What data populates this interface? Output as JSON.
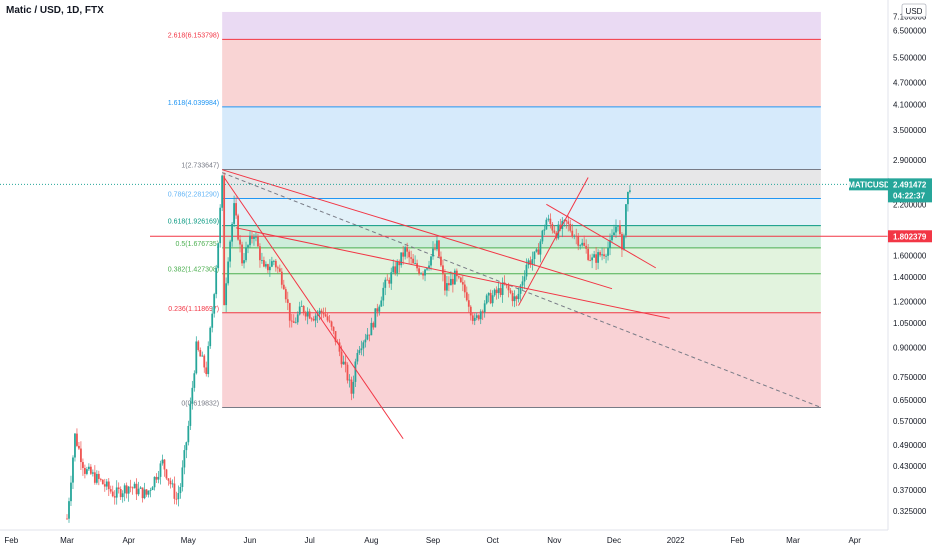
{
  "header": {
    "symbol": "Matic / USD, 1D, FTX",
    "usd_badge": "USD",
    "axis_top_partial": "7.100000"
  },
  "colors": {
    "up": "#26a69a",
    "down": "#ef5350",
    "trend": "#f23645",
    "dashed": "#787b86",
    "tag_green": "#26a69a",
    "tag_red": "#f23645"
  },
  "price_tags": {
    "current": {
      "ticker": "MATICUSD",
      "price": "2.491472",
      "countdown": "04:22:37"
    },
    "hline": {
      "price": "1.802379"
    }
  },
  "chart_data": {
    "type": "candlestick",
    "title": "Matic / USD, 1D, FTX",
    "y_scale": "log",
    "ylim": [
      0.29,
      7.3
    ],
    "x_start": "2021-02-10",
    "x_end": "2022-04-30",
    "x_ticks": [
      "Feb",
      "Mar",
      "Apr",
      "May",
      "Jun",
      "Jul",
      "Aug",
      "Sep",
      "Oct",
      "Nov",
      "Dec",
      "2022",
      "Feb",
      "Mar",
      "Apr"
    ],
    "y_ticks": [
      "7.100000",
      "6.500000",
      "5.500000",
      "4.700000",
      "4.100000",
      "3.500000",
      "2.900000",
      "2.500000",
      "2.200000",
      "1.800000",
      "1.600000",
      "1.400000",
      "1.200000",
      "1.050000",
      "0.900000",
      "0.750000",
      "0.650000",
      "0.570000",
      "0.490000",
      "0.430000",
      "0.370000",
      "0.325000"
    ],
    "fib_levels": [
      {
        "ratio": "0",
        "label": "0(0.619832)",
        "price": 0.619832,
        "fill": "#f8cdd0",
        "line": "#787b86",
        "text_color": "#787b86"
      },
      {
        "ratio": "0.236",
        "label": "0.236(1.118697)",
        "price": 1.118697,
        "fill": "#dff2da",
        "line": "#f23645",
        "text_color": "#f23645"
      },
      {
        "ratio": "0.382",
        "label": "0.382(1.427308)",
        "price": 1.427308,
        "fill": "#dff2da",
        "line": "#4caf50",
        "text_color": "#4caf50"
      },
      {
        "ratio": "0.5",
        "label": "0.5(1.676735)",
        "price": 1.676735,
        "fill": "#c8ebd6",
        "line": "#4caf50",
        "text_color": "#4caf50"
      },
      {
        "ratio": "0.618",
        "label": "0.618(1.926169)",
        "price": 1.926169,
        "fill": "#dff0f8",
        "line": "#089981",
        "text_color": "#089981"
      },
      {
        "ratio": "0.786",
        "label": "0.786(2.281290)",
        "price": 2.28129,
        "fill": "#e4e4e6",
        "line": "#2196f3",
        "text_color": "#64b5f6"
      },
      {
        "ratio": "1",
        "label": "1(2.733647)",
        "price": 2.733647,
        "fill": "#d2e8fb",
        "line": "#787b86",
        "text_color": "#787b86"
      },
      {
        "ratio": "1.618",
        "label": "1.618(4.039984)",
        "price": 4.039984,
        "fill": "#f8cfcf",
        "line": "#2196f3",
        "text_color": "#2196f3"
      },
      {
        "ratio": "2.618",
        "label": "2.618(6.153798)",
        "price": 6.153798,
        "fill": "#e8d6f2",
        "line": "#f23645",
        "text_color": "#f23645"
      }
    ],
    "fib_range": {
      "x0": "2021-05-18",
      "x1": "2022-03-15",
      "top_price": 7.3
    },
    "hline": 1.802379,
    "current_price": 2.491472,
    "trendlines": [
      {
        "name": "trend-1",
        "style": "solid",
        "p1": [
          "2021-05-18",
          2.73
        ],
        "p2": [
          "2021-11-30",
          1.3
        ]
      },
      {
        "name": "trend-2",
        "style": "solid",
        "p1": [
          "2021-05-19",
          2.6
        ],
        "p2": [
          "2021-08-17",
          0.51
        ]
      },
      {
        "name": "trend-3",
        "style": "dashed",
        "p1": [
          "2021-05-18",
          2.68
        ],
        "p2": [
          "2022-03-15",
          0.62
        ]
      },
      {
        "name": "trend-4",
        "style": "solid",
        "p1": [
          "2021-10-14",
          1.17
        ],
        "p2": [
          "2021-11-18",
          2.6
        ]
      },
      {
        "name": "trend-5",
        "style": "solid",
        "p1": [
          "2021-10-28",
          2.2
        ],
        "p2": [
          "2021-12-22",
          1.48
        ]
      },
      {
        "name": "trend-6",
        "style": "solid",
        "p1": [
          "2021-05-25",
          1.9
        ],
        "p2": [
          "2021-12-29",
          1.08
        ]
      }
    ],
    "series_keypoints": [
      [
        "2021-03-01",
        0.31
      ],
      [
        "2021-03-05",
        0.52
      ],
      [
        "2021-03-10",
        0.42
      ],
      [
        "2021-03-18",
        0.39
      ],
      [
        "2021-03-25",
        0.36
      ],
      [
        "2021-04-01",
        0.38
      ],
      [
        "2021-04-10",
        0.36
      ],
      [
        "2021-04-18",
        0.44
      ],
      [
        "2021-04-25",
        0.35
      ],
      [
        "2021-04-27",
        0.38
      ],
      [
        "2021-05-01",
        0.55
      ],
      [
        "2021-05-05",
        0.9
      ],
      [
        "2021-05-10",
        0.78
      ],
      [
        "2021-05-13",
        1.12
      ],
      [
        "2021-05-16",
        1.75
      ],
      [
        "2021-05-18",
        2.55
      ],
      [
        "2021-05-19",
        1.2
      ],
      [
        "2021-05-21",
        1.6
      ],
      [
        "2021-05-24",
        2.15
      ],
      [
        "2021-05-28",
        1.55
      ],
      [
        "2021-06-03",
        1.85
      ],
      [
        "2021-06-08",
        1.45
      ],
      [
        "2021-06-13",
        1.55
      ],
      [
        "2021-06-18",
        1.35
      ],
      [
        "2021-06-22",
        1.02
      ],
      [
        "2021-06-27",
        1.15
      ],
      [
        "2021-07-03",
        1.1
      ],
      [
        "2021-07-08",
        1.13
      ],
      [
        "2021-07-14",
        0.95
      ],
      [
        "2021-07-20",
        0.75
      ],
      [
        "2021-07-22",
        0.68
      ],
      [
        "2021-07-25",
        0.9
      ],
      [
        "2021-08-01",
        1.02
      ],
      [
        "2021-08-07",
        1.3
      ],
      [
        "2021-08-14",
        1.5
      ],
      [
        "2021-08-18",
        1.65
      ],
      [
        "2021-08-22",
        1.5
      ],
      [
        "2021-08-27",
        1.45
      ],
      [
        "2021-09-03",
        1.7
      ],
      [
        "2021-09-07",
        1.3
      ],
      [
        "2021-09-12",
        1.4
      ],
      [
        "2021-09-18",
        1.25
      ],
      [
        "2021-09-22",
        1.05
      ],
      [
        "2021-09-27",
        1.2
      ],
      [
        "2021-10-02",
        1.25
      ],
      [
        "2021-10-07",
        1.32
      ],
      [
        "2021-10-13",
        1.2
      ],
      [
        "2021-10-18",
        1.52
      ],
      [
        "2021-10-23",
        1.6
      ],
      [
        "2021-10-28",
        2.0
      ],
      [
        "2021-11-02",
        1.85
      ],
      [
        "2021-11-07",
        1.95
      ],
      [
        "2021-11-12",
        1.8
      ],
      [
        "2021-11-17",
        1.65
      ],
      [
        "2021-11-20",
        1.55
      ],
      [
        "2021-11-25",
        1.62
      ],
      [
        "2021-11-29",
        1.7
      ],
      [
        "2021-12-03",
        2.0
      ],
      [
        "2021-12-05",
        1.6
      ],
      [
        "2021-12-07",
        2.2
      ],
      [
        "2021-12-09",
        2.49
      ]
    ]
  }
}
